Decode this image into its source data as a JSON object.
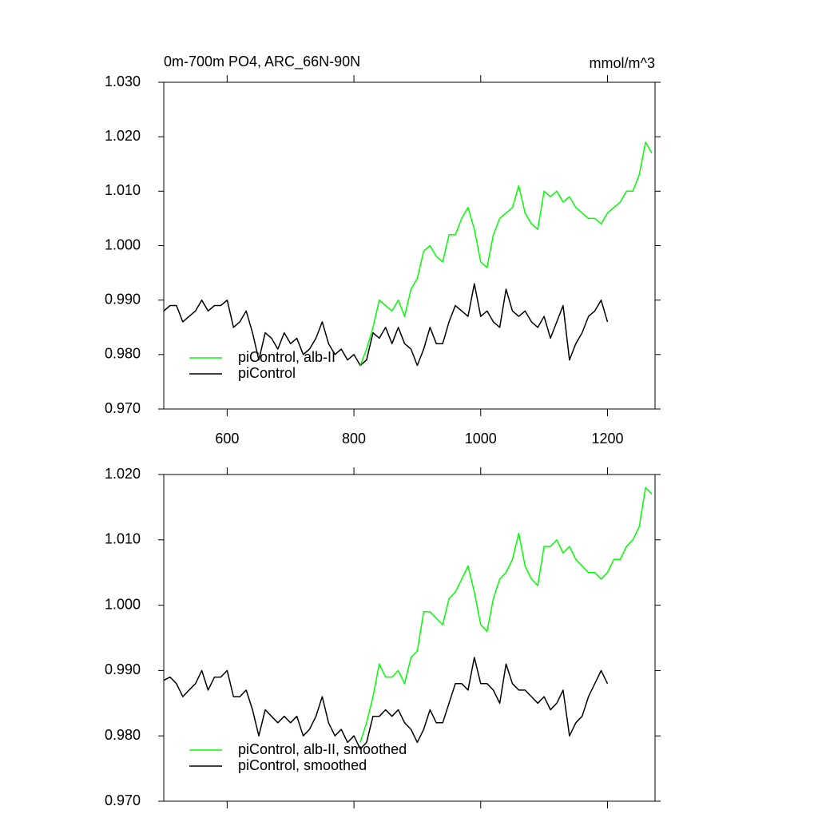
{
  "chart_data": [
    {
      "type": "line",
      "title": "0m-700m PO4, ARC_66N-90N",
      "unit_label": "mmol/m^3",
      "xlim": [
        500,
        1275
      ],
      "xticks": [
        600,
        800,
        1000,
        1200
      ],
      "show_xtick_labels": true,
      "ylim": [
        0.97,
        1.03
      ],
      "yticks": [
        {
          "value": 0.97,
          "label": "0.970"
        },
        {
          "value": 0.98,
          "label": "0.980"
        },
        {
          "value": 0.99,
          "label": "0.990"
        },
        {
          "value": 1.0,
          "label": "1.000"
        },
        {
          "value": 1.01,
          "label": "1.010"
        },
        {
          "value": 1.02,
          "label": "1.020"
        },
        {
          "value": 1.03,
          "label": "1.030"
        }
      ],
      "legend": "lower left",
      "series": [
        {
          "name": "piControl",
          "color": "#000000",
          "x": [
            500,
            510,
            520,
            530,
            540,
            550,
            560,
            570,
            580,
            590,
            600,
            610,
            620,
            630,
            640,
            650,
            660,
            670,
            680,
            690,
            700,
            710,
            720,
            730,
            740,
            750,
            760,
            770,
            780,
            790,
            800,
            810,
            820,
            830,
            840,
            850,
            860,
            870,
            880,
            890,
            900,
            910,
            920,
            930,
            940,
            950,
            960,
            970,
            980,
            990,
            1000,
            1010,
            1020,
            1030,
            1040,
            1050,
            1060,
            1070,
            1080,
            1090,
            1100,
            1110,
            1120,
            1130,
            1140,
            1150,
            1160,
            1170,
            1180,
            1190,
            1200
          ],
          "values": [
            0.988,
            0.989,
            0.989,
            0.986,
            0.987,
            0.988,
            0.99,
            0.988,
            0.989,
            0.989,
            0.99,
            0.985,
            0.986,
            0.988,
            0.984,
            0.979,
            0.984,
            0.983,
            0.981,
            0.984,
            0.982,
            0.983,
            0.98,
            0.981,
            0.983,
            0.986,
            0.982,
            0.98,
            0.981,
            0.979,
            0.98,
            0.978,
            0.979,
            0.984,
            0.983,
            0.985,
            0.982,
            0.985,
            0.982,
            0.981,
            0.978,
            0.981,
            0.985,
            0.982,
            0.982,
            0.986,
            0.989,
            0.988,
            0.987,
            0.993,
            0.987,
            0.988,
            0.986,
            0.985,
            0.992,
            0.988,
            0.987,
            0.988,
            0.986,
            0.985,
            0.987,
            0.983,
            0.986,
            0.989,
            0.979,
            0.982,
            0.984,
            0.987,
            0.988,
            0.99,
            0.986
          ]
        },
        {
          "name": "piControl, alb-II",
          "color": "#00ff00",
          "x": [
            810,
            820,
            830,
            840,
            850,
            860,
            870,
            880,
            890,
            900,
            910,
            920,
            930,
            940,
            950,
            960,
            970,
            980,
            990,
            1000,
            1010,
            1020,
            1030,
            1040,
            1050,
            1060,
            1070,
            1080,
            1090,
            1100,
            1110,
            1120,
            1130,
            1140,
            1150,
            1160,
            1170,
            1180,
            1190,
            1200,
            1210,
            1220,
            1230,
            1240,
            1250,
            1260,
            1270
          ],
          "values": [
            0.978,
            0.981,
            0.985,
            0.99,
            0.989,
            0.988,
            0.99,
            0.987,
            0.992,
            0.994,
            0.999,
            1.0,
            0.998,
            0.997,
            1.002,
            1.002,
            1.005,
            1.007,
            1.003,
            0.997,
            0.996,
            1.002,
            1.005,
            1.006,
            1.007,
            1.011,
            1.006,
            1.004,
            1.003,
            1.01,
            1.009,
            1.01,
            1.008,
            1.009,
            1.007,
            1.006,
            1.005,
            1.005,
            1.004,
            1.006,
            1.007,
            1.008,
            1.01,
            1.01,
            1.013,
            1.019,
            1.017
          ]
        }
      ]
    },
    {
      "type": "line",
      "xlim": [
        500,
        1275
      ],
      "xticks": [
        600,
        800,
        1000,
        1200
      ],
      "show_xtick_labels": false,
      "ylim": [
        0.97,
        1.02
      ],
      "yticks": [
        {
          "value": 0.97,
          "label": "0.970"
        },
        {
          "value": 0.98,
          "label": "0.980"
        },
        {
          "value": 0.99,
          "label": "0.990"
        },
        {
          "value": 1.0,
          "label": "1.000"
        },
        {
          "value": 1.01,
          "label": "1.010"
        },
        {
          "value": 1.02,
          "label": "1.020"
        }
      ],
      "legend": "lower left",
      "series": [
        {
          "name": "piControl, smoothed",
          "color": "#000000",
          "x": [
            500,
            510,
            520,
            530,
            540,
            550,
            560,
            570,
            580,
            590,
            600,
            610,
            620,
            630,
            640,
            650,
            660,
            670,
            680,
            690,
            700,
            710,
            720,
            730,
            740,
            750,
            760,
            770,
            780,
            790,
            800,
            810,
            820,
            830,
            840,
            850,
            860,
            870,
            880,
            890,
            900,
            910,
            920,
            930,
            940,
            950,
            960,
            970,
            980,
            990,
            1000,
            1010,
            1020,
            1030,
            1040,
            1050,
            1060,
            1070,
            1080,
            1090,
            1100,
            1110,
            1120,
            1130,
            1140,
            1150,
            1160,
            1170,
            1180,
            1190,
            1200
          ],
          "values": [
            0.9885,
            0.989,
            0.988,
            0.986,
            0.987,
            0.988,
            0.99,
            0.987,
            0.989,
            0.989,
            0.99,
            0.986,
            0.986,
            0.987,
            0.984,
            0.98,
            0.984,
            0.983,
            0.982,
            0.983,
            0.982,
            0.983,
            0.98,
            0.981,
            0.983,
            0.986,
            0.982,
            0.98,
            0.981,
            0.979,
            0.98,
            0.978,
            0.979,
            0.983,
            0.983,
            0.984,
            0.983,
            0.984,
            0.982,
            0.981,
            0.979,
            0.981,
            0.984,
            0.982,
            0.982,
            0.985,
            0.988,
            0.988,
            0.987,
            0.992,
            0.988,
            0.988,
            0.987,
            0.985,
            0.991,
            0.988,
            0.987,
            0.987,
            0.986,
            0.985,
            0.986,
            0.984,
            0.985,
            0.987,
            0.98,
            0.982,
            0.983,
            0.986,
            0.988,
            0.99,
            0.988
          ]
        },
        {
          "name": "piControl, alb-II, smoothed",
          "color": "#00ff00",
          "x": [
            810,
            820,
            830,
            840,
            850,
            860,
            870,
            880,
            890,
            900,
            910,
            920,
            930,
            940,
            950,
            960,
            970,
            980,
            990,
            1000,
            1010,
            1020,
            1030,
            1040,
            1050,
            1060,
            1070,
            1080,
            1090,
            1100,
            1110,
            1120,
            1130,
            1140,
            1150,
            1160,
            1170,
            1180,
            1190,
            1200,
            1210,
            1220,
            1230,
            1240,
            1250,
            1260,
            1270
          ],
          "values": [
            0.979,
            0.982,
            0.986,
            0.991,
            0.989,
            0.989,
            0.99,
            0.988,
            0.992,
            0.993,
            0.999,
            0.999,
            0.998,
            0.997,
            1.001,
            1.002,
            1.004,
            1.006,
            1.002,
            0.997,
            0.996,
            1.001,
            1.004,
            1.005,
            1.007,
            1.011,
            1.006,
            1.004,
            1.003,
            1.009,
            1.009,
            1.01,
            1.008,
            1.009,
            1.007,
            1.006,
            1.005,
            1.005,
            1.004,
            1.005,
            1.007,
            1.007,
            1.009,
            1.01,
            1.012,
            1.018,
            1.017
          ]
        }
      ]
    }
  ]
}
